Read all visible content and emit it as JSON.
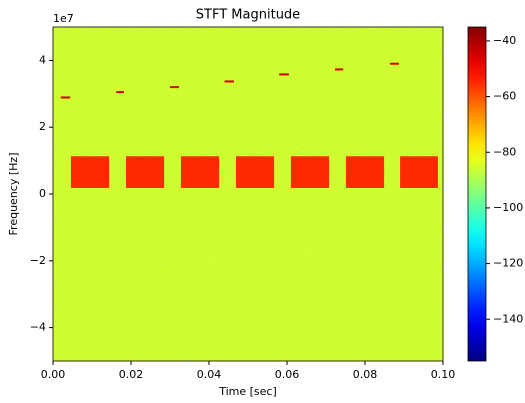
{
  "chart_data": {
    "type": "spectrogram",
    "title": "STFT Magnitude",
    "x_label": "Time [sec]",
    "y_label": "Frequency [Hz]",
    "y_offset_label": "1e7",
    "xlim": [
      0,
      0.1
    ],
    "xticks": [
      {
        "value": 0,
        "label": "0.00"
      },
      {
        "value": 0.02,
        "label": "0.02"
      },
      {
        "value": 0.04,
        "label": "0.04"
      },
      {
        "value": 0.06,
        "label": "0.06"
      },
      {
        "value": 0.08,
        "label": "0.08"
      },
      {
        "value": 0.1,
        "label": "0.10"
      }
    ],
    "ylim": [
      -50000000,
      50000000
    ],
    "yticks": [
      {
        "value": -40000000,
        "label": "−4"
      },
      {
        "value": -20000000,
        "label": "−2"
      },
      {
        "value": 0,
        "label": "0"
      },
      {
        "value": 20000000,
        "label": "2"
      },
      {
        "value": 40000000,
        "label": "4"
      }
    ],
    "colormap": "jet",
    "clim": [
      -155,
      -35
    ],
    "cticks": [
      {
        "value": -140,
        "label": "−140"
      },
      {
        "value": -120,
        "label": "−120"
      },
      {
        "value": -100,
        "label": "−100"
      },
      {
        "value": -80,
        "label": "−80"
      },
      {
        "value": -60,
        "label": "−60"
      },
      {
        "value": -40,
        "label": "−40"
      }
    ],
    "background_level": -85,
    "regions": [
      {
        "t0": 0.0046,
        "t1": 0.0144,
        "f0": 1800000,
        "f1": 11300000,
        "level": -55
      },
      {
        "t0": 0.0187,
        "t1": 0.0285,
        "f0": 1800000,
        "f1": 11300000,
        "level": -55
      },
      {
        "t0": 0.0328,
        "t1": 0.0426,
        "f0": 1800000,
        "f1": 11300000,
        "level": -55
      },
      {
        "t0": 0.0469,
        "t1": 0.0567,
        "f0": 1800000,
        "f1": 11300000,
        "level": -55
      },
      {
        "t0": 0.061,
        "t1": 0.0708,
        "f0": 1800000,
        "f1": 11300000,
        "level": -55
      },
      {
        "t0": 0.0751,
        "t1": 0.0849,
        "f0": 1800000,
        "f1": 11300000,
        "level": -55
      },
      {
        "t0": 0.089,
        "t1": 0.0987,
        "f0": 1800000,
        "f1": 11300000,
        "level": -55
      },
      {
        "t0": 0.002,
        "t1": 0.0044,
        "f0": 28600000,
        "f1": 29200000,
        "level": -45
      },
      {
        "t0": 0.0162,
        "t1": 0.0182,
        "f0": 30200000,
        "f1": 30800000,
        "level": -45
      },
      {
        "t0": 0.03,
        "t1": 0.0323,
        "f0": 31700000,
        "f1": 32300000,
        "level": -45
      },
      {
        "t0": 0.044,
        "t1": 0.0464,
        "f0": 33400000,
        "f1": 34000000,
        "level": -45
      },
      {
        "t0": 0.058,
        "t1": 0.0605,
        "f0": 35500000,
        "f1": 36100000,
        "level": -45
      },
      {
        "t0": 0.0723,
        "t1": 0.0744,
        "f0": 37000000,
        "f1": 37600000,
        "level": -45
      },
      {
        "t0": 0.0864,
        "t1": 0.0887,
        "f0": 38700000,
        "f1": 39300000,
        "level": -45
      }
    ]
  }
}
